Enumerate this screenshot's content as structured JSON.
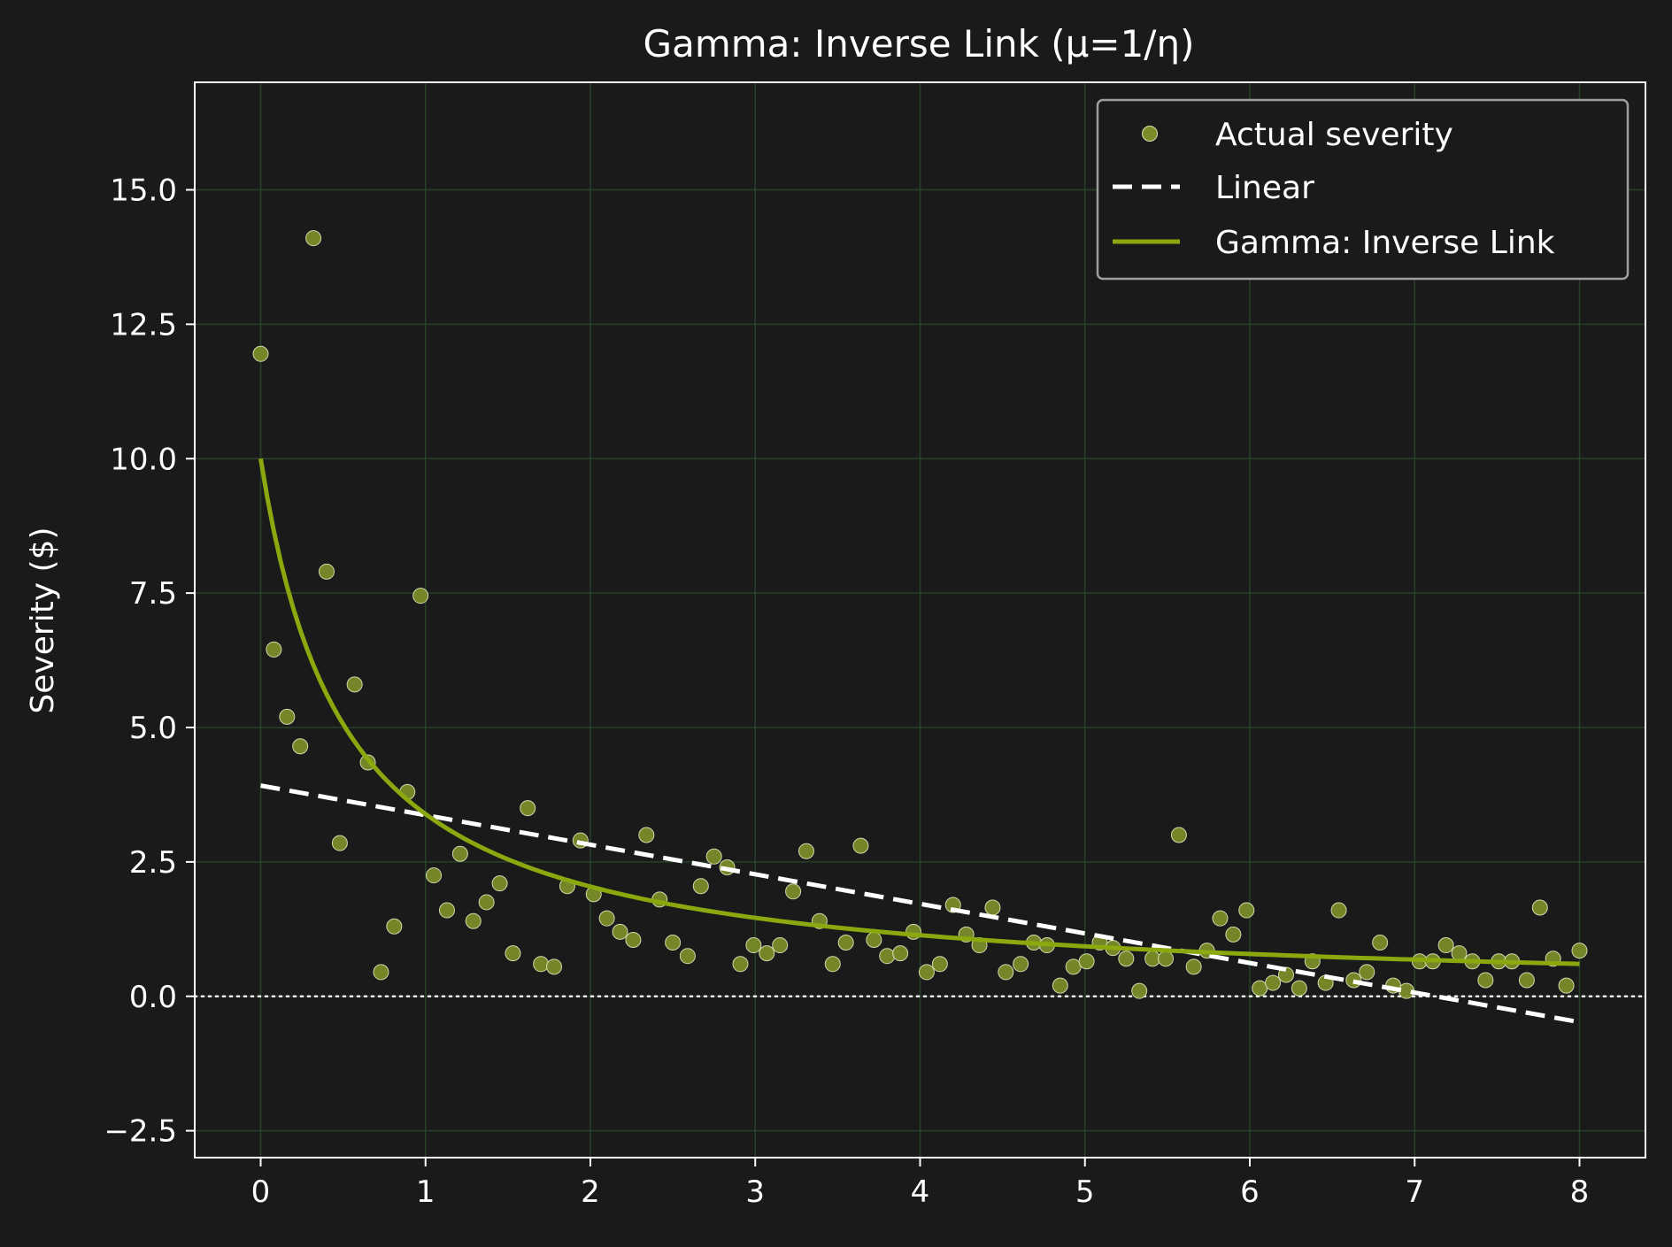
{
  "chart_data": {
    "type": "scatter",
    "title": "Gamma: Inverse Link (μ=1/η)",
    "xlabel": "",
    "ylabel": "Severity ($)",
    "xlim": [
      -0.4,
      8.4
    ],
    "ylim": [
      -3.0,
      17.0
    ],
    "x_ticks": [
      0,
      1,
      2,
      3,
      4,
      5,
      6,
      7,
      8
    ],
    "x_tick_labels": [
      "0",
      "1",
      "2",
      "3",
      "4",
      "5",
      "6",
      "7",
      "8"
    ],
    "y_ticks": [
      -2.5,
      0.0,
      2.5,
      5.0,
      7.5,
      10.0,
      12.5,
      15.0
    ],
    "y_tick_labels": [
      "−2.5",
      "0.0",
      "2.5",
      "5.0",
      "7.5",
      "10.0",
      "12.5",
      "15.0"
    ],
    "grid": true,
    "legend_position": "top-right",
    "reference_line": {
      "y": 0.0,
      "style": "dotted"
    },
    "series": [
      {
        "name": "Actual severity",
        "kind": "scatter",
        "color": "#7a8c2a",
        "points": [
          [
            0.0,
            11.95
          ],
          [
            0.08,
            6.45
          ],
          [
            0.16,
            5.2
          ],
          [
            0.24,
            4.65
          ],
          [
            0.32,
            14.1
          ],
          [
            0.4,
            7.9
          ],
          [
            0.48,
            2.85
          ],
          [
            0.57,
            5.8
          ],
          [
            0.65,
            4.35
          ],
          [
            0.73,
            0.45
          ],
          [
            0.81,
            1.3
          ],
          [
            0.89,
            3.8
          ],
          [
            0.97,
            7.45
          ],
          [
            1.05,
            2.25
          ],
          [
            1.13,
            1.6
          ],
          [
            1.21,
            2.65
          ],
          [
            1.29,
            1.4
          ],
          [
            1.37,
            1.75
          ],
          [
            1.45,
            2.1
          ],
          [
            1.53,
            0.8
          ],
          [
            1.62,
            3.5
          ],
          [
            1.7,
            0.6
          ],
          [
            1.78,
            0.55
          ],
          [
            1.86,
            2.05
          ],
          [
            1.94,
            2.9
          ],
          [
            2.02,
            1.9
          ],
          [
            2.1,
            1.45
          ],
          [
            2.18,
            1.2
          ],
          [
            2.26,
            1.05
          ],
          [
            2.34,
            3.0
          ],
          [
            2.42,
            1.8
          ],
          [
            2.5,
            1.0
          ],
          [
            2.59,
            0.75
          ],
          [
            2.67,
            2.05
          ],
          [
            2.75,
            2.6
          ],
          [
            2.83,
            2.4
          ],
          [
            2.91,
            0.6
          ],
          [
            2.99,
            0.95
          ],
          [
            3.07,
            0.8
          ],
          [
            3.15,
            0.95
          ],
          [
            3.23,
            1.95
          ],
          [
            3.31,
            2.7
          ],
          [
            3.39,
            1.4
          ],
          [
            3.47,
            0.6
          ],
          [
            3.55,
            1.0
          ],
          [
            3.64,
            2.8
          ],
          [
            3.72,
            1.05
          ],
          [
            3.8,
            0.75
          ],
          [
            3.88,
            0.8
          ],
          [
            3.96,
            1.2
          ],
          [
            4.04,
            0.45
          ],
          [
            4.12,
            0.6
          ],
          [
            4.2,
            1.7
          ],
          [
            4.28,
            1.15
          ],
          [
            4.36,
            0.95
          ],
          [
            4.44,
            1.65
          ],
          [
            4.52,
            0.45
          ],
          [
            4.61,
            0.6
          ],
          [
            4.69,
            1.0
          ],
          [
            4.77,
            0.95
          ],
          [
            4.85,
            0.2
          ],
          [
            4.93,
            0.55
          ],
          [
            5.01,
            0.65
          ],
          [
            5.09,
            1.0
          ],
          [
            5.17,
            0.9
          ],
          [
            5.25,
            0.7
          ],
          [
            5.33,
            0.1
          ],
          [
            5.41,
            0.7
          ],
          [
            5.49,
            0.7
          ],
          [
            5.57,
            3.0
          ],
          [
            5.66,
            0.55
          ],
          [
            5.74,
            0.85
          ],
          [
            5.82,
            1.45
          ],
          [
            5.9,
            1.15
          ],
          [
            5.98,
            1.6
          ],
          [
            6.06,
            0.15
          ],
          [
            6.14,
            0.25
          ],
          [
            6.22,
            0.4
          ],
          [
            6.3,
            0.15
          ],
          [
            6.38,
            0.65
          ],
          [
            6.46,
            0.25
          ],
          [
            6.54,
            1.6
          ],
          [
            6.63,
            0.3
          ],
          [
            6.71,
            0.45
          ],
          [
            6.79,
            1.0
          ],
          [
            6.87,
            0.2
          ],
          [
            6.95,
            0.1
          ],
          [
            7.03,
            0.65
          ],
          [
            7.11,
            0.65
          ],
          [
            7.19,
            0.95
          ],
          [
            7.27,
            0.8
          ],
          [
            7.35,
            0.65
          ],
          [
            7.43,
            0.3
          ],
          [
            7.51,
            0.65
          ],
          [
            7.59,
            0.65
          ],
          [
            7.68,
            0.3
          ],
          [
            7.76,
            1.65
          ],
          [
            7.84,
            0.7
          ],
          [
            7.92,
            0.2
          ],
          [
            8.0,
            0.85
          ]
        ]
      },
      {
        "name": "Linear",
        "kind": "line",
        "style": "dashed",
        "color": "#ffffff",
        "intercept": 3.92,
        "slope": -0.55
      },
      {
        "name": "Gamma: Inverse Link",
        "kind": "line",
        "style": "solid",
        "color": "#8ba80f",
        "inverse_link": {
          "intercept": 0.1,
          "slope": 0.195
        }
      }
    ]
  }
}
